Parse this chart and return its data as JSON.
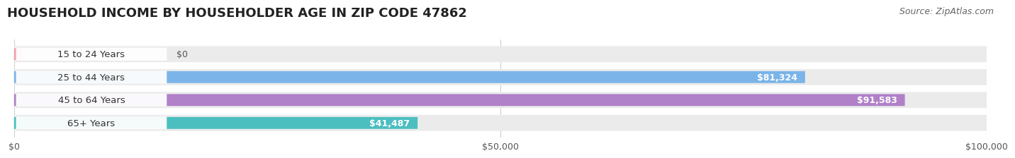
{
  "title": "HOUSEHOLD INCOME BY HOUSEHOLDER AGE IN ZIP CODE 47862",
  "source": "Source: ZipAtlas.com",
  "categories": [
    "15 to 24 Years",
    "25 to 44 Years",
    "45 to 64 Years",
    "65+ Years"
  ],
  "values": [
    0,
    81324,
    91583,
    41487
  ],
  "bar_colors": [
    "#f0a0a8",
    "#7ab4e8",
    "#b080c8",
    "#4bbec0"
  ],
  "bar_track_color": "#ebebeb",
  "xlim": [
    0,
    100000
  ],
  "xticks": [
    0,
    50000,
    100000
  ],
  "xtick_labels": [
    "$0",
    "$50,000",
    "$100,000"
  ],
  "value_labels": [
    "$0",
    "$81,324",
    "$91,583",
    "$41,487"
  ],
  "background_color": "#ffffff",
  "title_fontsize": 13,
  "label_fontsize": 9.5,
  "value_fontsize": 9,
  "tick_fontsize": 9,
  "source_fontsize": 9
}
